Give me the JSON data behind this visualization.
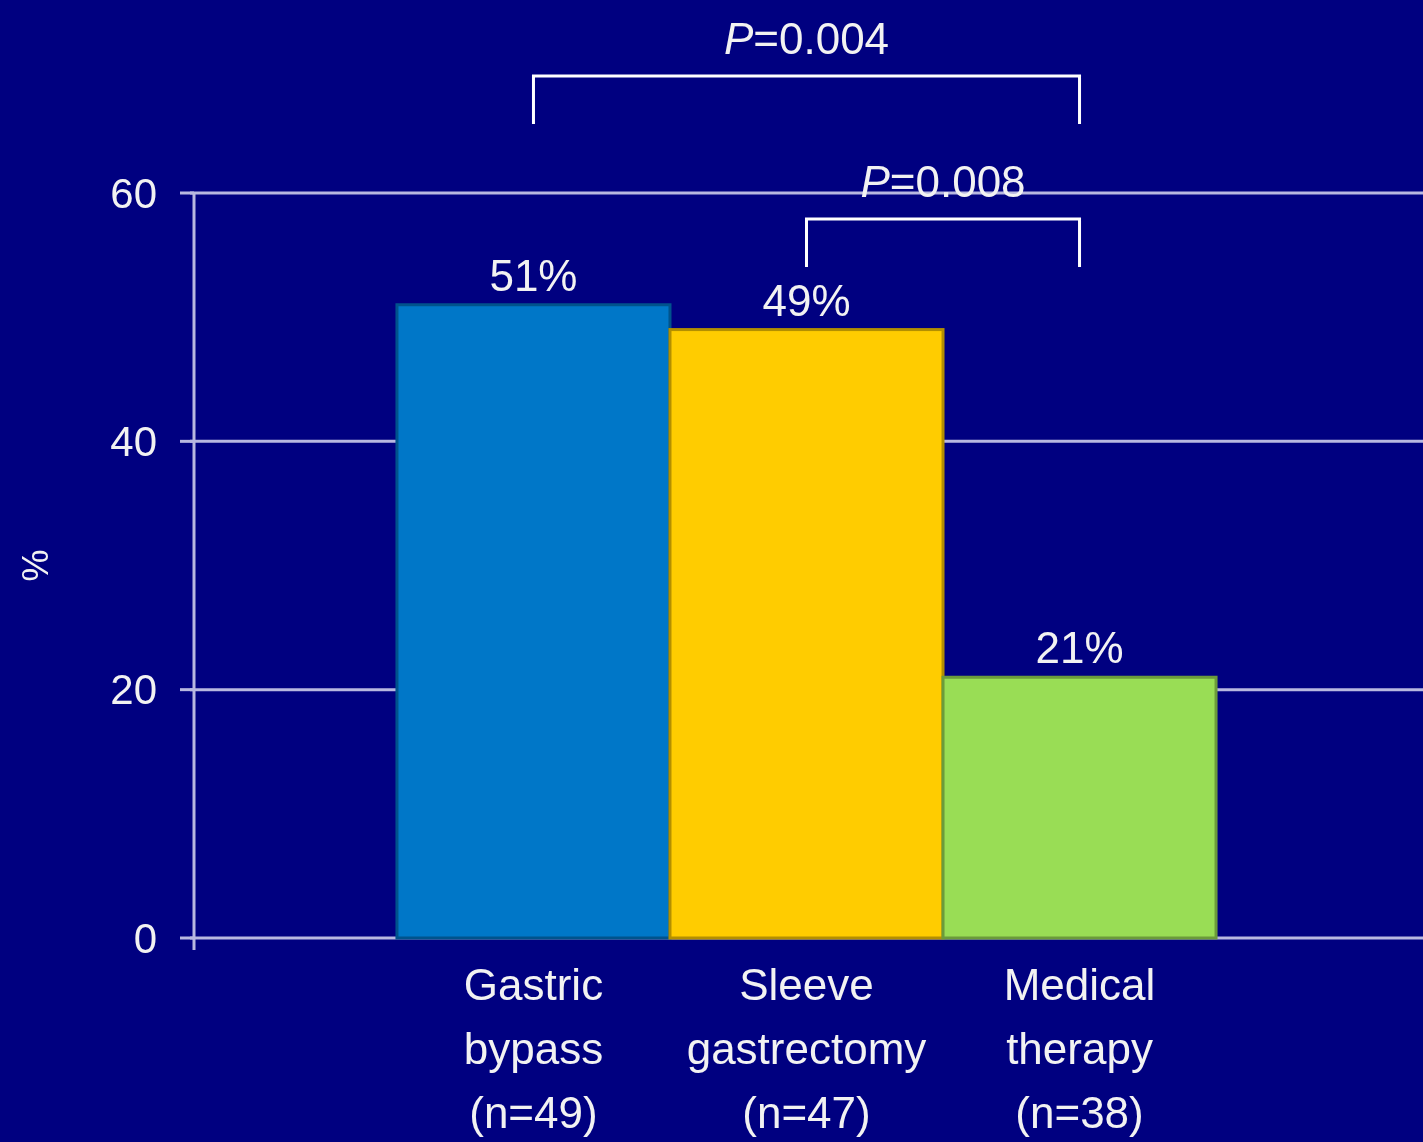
{
  "chart_data": {
    "type": "bar",
    "ylabel": "%",
    "categories": [
      "Gastric\nbypass\n(n=49)",
      "Sleeve\ngastrectomy\n(n=47)",
      "Medical\ntherapy\n(n=38)"
    ],
    "values": [
      51,
      49,
      21
    ],
    "colors": [
      "#0077c8",
      "#ffcc00",
      "#99dd55"
    ],
    "value_labels": [
      "51%",
      "49%",
      "21%"
    ],
    "ylim": [
      0,
      60
    ],
    "yticks": [
      0,
      20,
      40,
      60
    ],
    "grid": "y",
    "annotations": [
      "P=0.004",
      "P=0.008"
    ]
  }
}
